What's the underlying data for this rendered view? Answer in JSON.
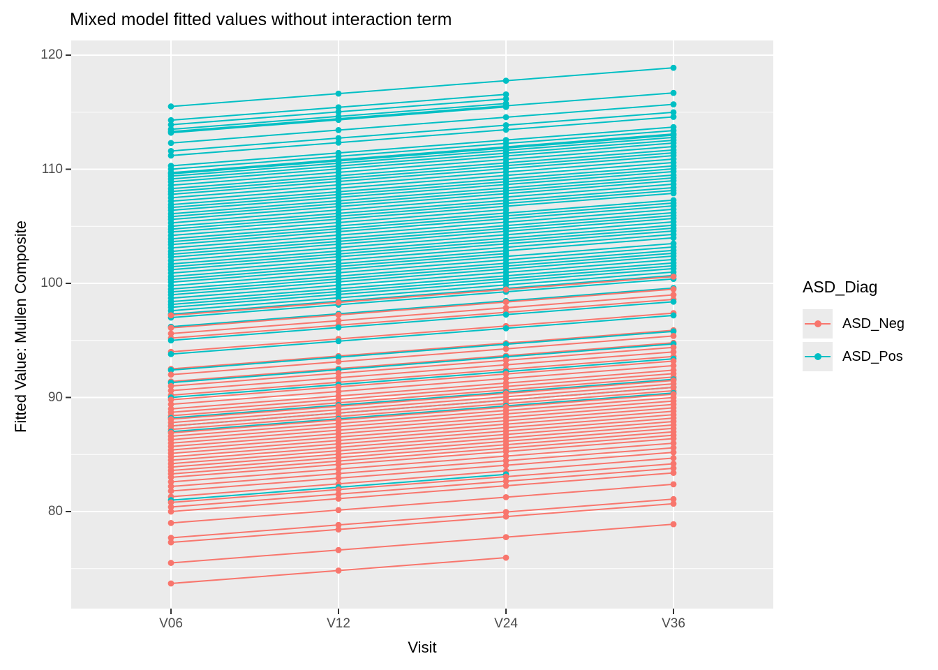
{
  "title": "Mixed model fitted values without interaction term",
  "axes": {
    "x": {
      "label": "Visit",
      "tick_labels": [
        "V06",
        "V12",
        "V24",
        "V36"
      ]
    },
    "y": {
      "label": "Fitted Value: Mullen Composite",
      "tick_values": [
        80,
        90,
        100,
        110,
        120
      ],
      "minor_grid_values": [
        75,
        85,
        95,
        105,
        115
      ],
      "range": [
        71.5,
        121.3
      ]
    }
  },
  "legend": {
    "title": "ASD_Diag",
    "entries": [
      {
        "label": "ASD_Neg",
        "color": "#F8766D"
      },
      {
        "label": "ASD_Pos",
        "color": "#00BFC4"
      }
    ]
  },
  "colors": {
    "panel_background": "#EBEBEB",
    "grid_major": "#FFFFFF",
    "grid_minor": "#FFFFFF",
    "tick_mark": "#333333",
    "axis_text": "#4D4D4D",
    "asd_neg": "#F8766D",
    "asd_pos": "#00BFC4"
  },
  "chart_data": {
    "type": "line",
    "title": "Mixed model fitted values without interaction term",
    "xlabel": "Visit",
    "ylabel": "Fitted Value: Mullen Composite",
    "x_categories": [
      "V06",
      "V12",
      "V24",
      "V36"
    ],
    "ylim": [
      71.5,
      121.3
    ],
    "grid": true,
    "legend_position": "right",
    "slope_per_visit": 1.13,
    "encoding_note": "Each subject is [group, fitted value at V06, number of visits]; fitted value at visit i = v06 + slope_per_visit * i (parallel lines, no group x visit interaction). Subjects with 3 visits end at V24.",
    "subjects": [
      [
        "ASD_Pos",
        115.5,
        4
      ],
      [
        "ASD_Pos",
        114.3,
        3
      ],
      [
        "ASD_Pos",
        113.9,
        3
      ],
      [
        "ASD_Pos",
        113.5,
        3
      ],
      [
        "ASD_Pos",
        113.2,
        3
      ],
      [
        "ASD_Pos",
        113.3,
        4
      ],
      [
        "ASD_Pos",
        112.3,
        4
      ],
      [
        "ASD_Pos",
        111.6,
        4
      ],
      [
        "ASD_Pos",
        111.2,
        4
      ],
      [
        "ASD_Pos",
        110.3,
        4
      ],
      [
        "ASD_Pos",
        109.6,
        4
      ],
      [
        "ASD_Pos",
        110.0,
        4
      ],
      [
        "ASD_Pos",
        109.7,
        4
      ],
      [
        "ASD_Pos",
        109.4,
        4
      ],
      [
        "ASD_Pos",
        109.15,
        4
      ],
      [
        "ASD_Pos",
        108.9,
        4
      ],
      [
        "ASD_Pos",
        108.6,
        4
      ],
      [
        "ASD_Pos",
        108.3,
        4
      ],
      [
        "ASD_Pos",
        108.05,
        4
      ],
      [
        "ASD_Pos",
        107.8,
        4
      ],
      [
        "ASD_Pos",
        107.5,
        4
      ],
      [
        "ASD_Pos",
        107.2,
        4
      ],
      [
        "ASD_Pos",
        106.9,
        4
      ],
      [
        "ASD_Pos",
        106.65,
        4
      ],
      [
        "ASD_Pos",
        106.4,
        4
      ],
      [
        "ASD_Pos",
        106.1,
        4
      ],
      [
        "ASD_Pos",
        105.85,
        4
      ],
      [
        "ASD_Pos",
        105.6,
        4
      ],
      [
        "ASD_Pos",
        105.3,
        4
      ],
      [
        "ASD_Pos",
        105.0,
        4
      ],
      [
        "ASD_Pos",
        104.75,
        4
      ],
      [
        "ASD_Pos",
        104.5,
        4
      ],
      [
        "ASD_Pos",
        104.2,
        3
      ],
      [
        "ASD_Pos",
        103.9,
        4
      ],
      [
        "ASD_Pos",
        103.65,
        4
      ],
      [
        "ASD_Pos",
        103.4,
        4
      ],
      [
        "ASD_Pos",
        103.1,
        4
      ],
      [
        "ASD_Pos",
        102.8,
        4
      ],
      [
        "ASD_Pos",
        102.55,
        4
      ],
      [
        "ASD_Pos",
        102.3,
        4
      ],
      [
        "ASD_Pos",
        102.0,
        4
      ],
      [
        "ASD_Pos",
        101.7,
        4
      ],
      [
        "ASD_Pos",
        101.45,
        4
      ],
      [
        "ASD_Pos",
        101.2,
        4
      ],
      [
        "ASD_Pos",
        100.9,
        4
      ],
      [
        "ASD_Pos",
        100.6,
        4
      ],
      [
        "ASD_Pos",
        100.35,
        3
      ],
      [
        "ASD_Pos",
        100.1,
        4
      ],
      [
        "ASD_Pos",
        99.8,
        4
      ],
      [
        "ASD_Pos",
        99.5,
        4
      ],
      [
        "ASD_Pos",
        99.25,
        4
      ],
      [
        "ASD_Pos",
        99.0,
        4
      ],
      [
        "ASD_Pos",
        98.7,
        4
      ],
      [
        "ASD_Pos",
        98.4,
        4
      ],
      [
        "ASD_Pos",
        98.15,
        4
      ],
      [
        "ASD_Pos",
        97.9,
        4
      ],
      [
        "ASD_Pos",
        97.6,
        4
      ],
      [
        "ASD_Pos",
        97.3,
        4
      ],
      [
        "ASD_Pos",
        97.0,
        4
      ],
      [
        "ASD_Pos",
        96.2,
        4
      ],
      [
        "ASD_Pos",
        95.0,
        4
      ],
      [
        "ASD_Pos",
        93.8,
        4
      ],
      [
        "ASD_Pos",
        92.4,
        4
      ],
      [
        "ASD_Pos",
        91.3,
        4
      ],
      [
        "ASD_Pos",
        90.0,
        4
      ],
      [
        "ASD_Pos",
        88.2,
        4
      ],
      [
        "ASD_Pos",
        87.5,
        4
      ],
      [
        "ASD_Pos",
        87.0,
        4
      ],
      [
        "ASD_Pos",
        81.0,
        3
      ],
      [
        "ASD_Neg",
        97.2,
        4
      ],
      [
        "ASD_Neg",
        96.1,
        4
      ],
      [
        "ASD_Neg",
        95.6,
        4
      ],
      [
        "ASD_Neg",
        95.2,
        4
      ],
      [
        "ASD_Neg",
        94.0,
        4
      ],
      [
        "ASD_Neg",
        92.5,
        4
      ],
      [
        "ASD_Neg",
        92.0,
        4
      ],
      [
        "ASD_Neg",
        91.4,
        4
      ],
      [
        "ASD_Neg",
        91.0,
        4
      ],
      [
        "ASD_Neg",
        90.6,
        4
      ],
      [
        "ASD_Neg",
        90.2,
        4
      ],
      [
        "ASD_Neg",
        89.8,
        4
      ],
      [
        "ASD_Neg",
        89.4,
        4
      ],
      [
        "ASD_Neg",
        89.0,
        4
      ],
      [
        "ASD_Neg",
        88.7,
        4
      ],
      [
        "ASD_Neg",
        88.4,
        4
      ],
      [
        "ASD_Neg",
        88.1,
        4
      ],
      [
        "ASD_Neg",
        87.8,
        4
      ],
      [
        "ASD_Neg",
        87.5,
        4
      ],
      [
        "ASD_Neg",
        87.2,
        4
      ],
      [
        "ASD_Neg",
        86.9,
        4
      ],
      [
        "ASD_Neg",
        86.6,
        4
      ],
      [
        "ASD_Neg",
        86.3,
        4
      ],
      [
        "ASD_Neg",
        86.0,
        4
      ],
      [
        "ASD_Neg",
        85.7,
        4
      ],
      [
        "ASD_Neg",
        85.4,
        4
      ],
      [
        "ASD_Neg",
        85.1,
        4
      ],
      [
        "ASD_Neg",
        84.8,
        4
      ],
      [
        "ASD_Neg",
        84.5,
        4
      ],
      [
        "ASD_Neg",
        84.2,
        4
      ],
      [
        "ASD_Neg",
        83.9,
        4
      ],
      [
        "ASD_Neg",
        83.6,
        4
      ],
      [
        "ASD_Neg",
        83.3,
        4
      ],
      [
        "ASD_Neg",
        83.0,
        4
      ],
      [
        "ASD_Neg",
        82.6,
        4
      ],
      [
        "ASD_Neg",
        82.2,
        4
      ],
      [
        "ASD_Neg",
        81.8,
        4
      ],
      [
        "ASD_Neg",
        81.3,
        4
      ],
      [
        "ASD_Neg",
        80.8,
        4
      ],
      [
        "ASD_Neg",
        80.4,
        4
      ],
      [
        "ASD_Neg",
        80.0,
        4
      ],
      [
        "ASD_Neg",
        79.0,
        4
      ],
      [
        "ASD_Neg",
        77.7,
        4
      ],
      [
        "ASD_Neg",
        77.3,
        4
      ],
      [
        "ASD_Neg",
        75.5,
        4
      ],
      [
        "ASD_Neg",
        73.7,
        3
      ]
    ]
  }
}
